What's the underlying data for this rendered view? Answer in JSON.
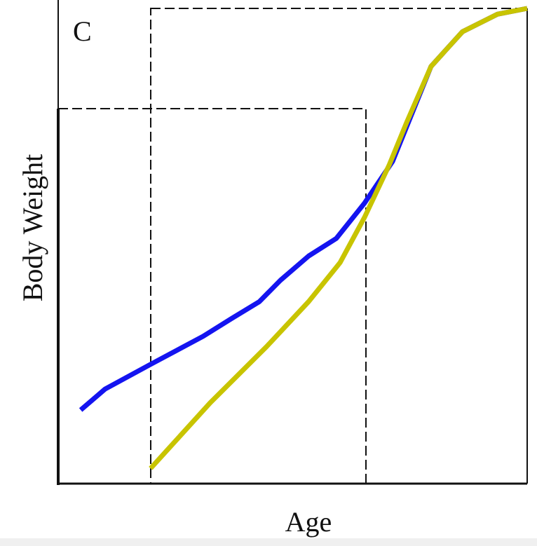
{
  "chart_data": {
    "type": "line",
    "panel_label": "C",
    "x_label": "Age",
    "y_label": "Body Weight",
    "xlim": [
      0,
      100
    ],
    "ylim": [
      0,
      100
    ],
    "series": [
      {
        "color": "#1414f0",
        "x": [
          4.8,
          10.0,
          19.7,
          30.9,
          36.9,
          42.9,
          47.4,
          53.4,
          59.3,
          65.3,
          71.3,
          79.5,
          86.2,
          93.7,
          100
        ],
        "values": [
          15.5,
          19.9,
          25.1,
          31.0,
          34.7,
          38.3,
          42.8,
          47.9,
          51.6,
          59.0,
          67.8,
          87.8,
          95.1,
          98.8,
          100
        ]
      },
      {
        "color": "#c8c400",
        "x": [
          19.7,
          32.4,
          44.4,
          53.4,
          60.1,
          65.3,
          70.6,
          74.3,
          79.5,
          86.2,
          93.7,
          100
        ],
        "values": [
          3.2,
          17.0,
          28.8,
          38.3,
          46.5,
          56.0,
          67.1,
          76.0,
          87.8,
          95.1,
          98.8,
          100
        ]
      }
    ]
  }
}
